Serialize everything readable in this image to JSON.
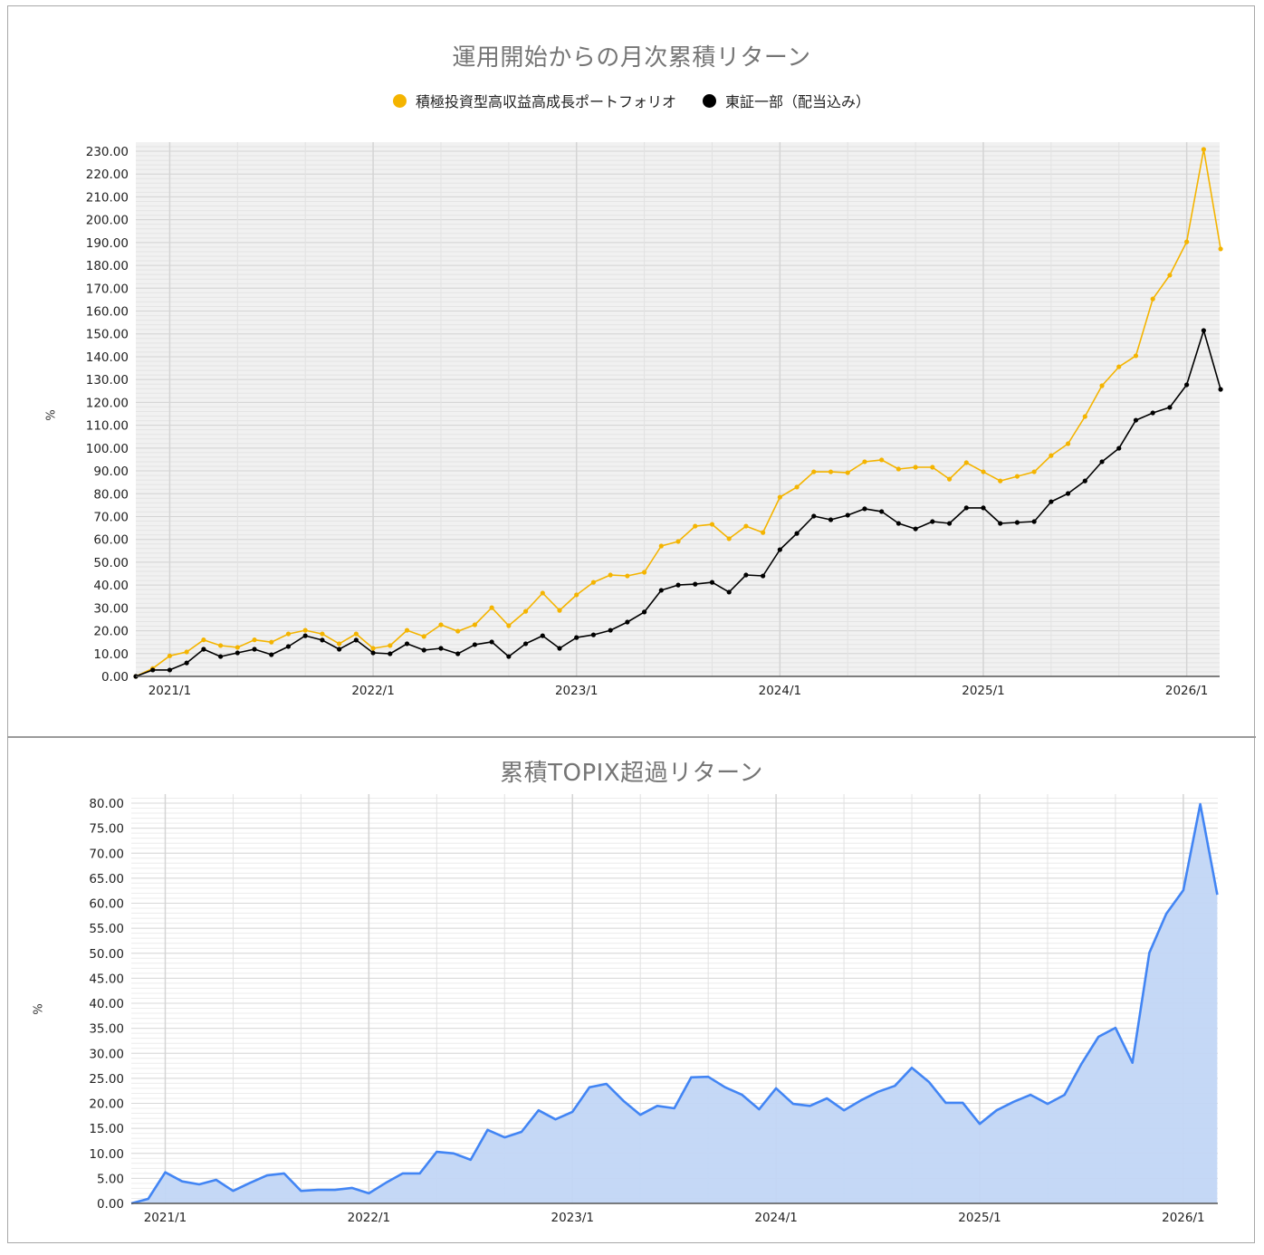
{
  "chart_data": [
    {
      "type": "line",
      "title": "運用開始からの月次累積リターン",
      "xlabel": "",
      "ylabel": "%",
      "ylim": [
        0,
        230
      ],
      "y_ticks": [
        "0.00",
        "10.00",
        "20.00",
        "30.00",
        "40.00",
        "50.00",
        "60.00",
        "70.00",
        "80.00",
        "90.00",
        "100.00",
        "110.00",
        "120.00",
        "130.00",
        "140.00",
        "150.00",
        "160.00",
        "170.00",
        "180.00",
        "190.00",
        "200.00",
        "210.00",
        "220.00",
        "230.00"
      ],
      "x_tick_labels": [
        "2021/1",
        "2022/1",
        "2023/1",
        "2024/1",
        "2025/1",
        "2026/1"
      ],
      "x_start": "2020/11",
      "x_end": "2026/3",
      "grid": true,
      "legend_position": "top",
      "series": [
        {
          "name": "積極投資型高収益高成長ポートフォリオ",
          "color": "#f4b400",
          "values": [
            0,
            3.5,
            9,
            10.7,
            16,
            13.5,
            12.7,
            16,
            15,
            18.6,
            20.2,
            18.6,
            14.3,
            18.6,
            12.3,
            13.5,
            20.2,
            17.5,
            22.6,
            19.8,
            22.6,
            30.1,
            22.2,
            28.5,
            36.5,
            28.9,
            35.7,
            41.2,
            44.4,
            44,
            45.6,
            57.1,
            59.1,
            65.8,
            66.6,
            60.3,
            65.8,
            63,
            78.5,
            82.9,
            89.6,
            89.6,
            89.2,
            94,
            94.8,
            90.8,
            91.6,
            91.6,
            86.4,
            93.6,
            89.6,
            85.6,
            87.6,
            89.6,
            96.7,
            101.9,
            113.8,
            127.3,
            135.6,
            140.4,
            165.3,
            175.7,
            190.3,
            230.8,
            187.2
          ]
        },
        {
          "name": "東証一部（配当込み）",
          "color": "#000000",
          "values": [
            0,
            2.8,
            2.8,
            5.9,
            11.9,
            8.7,
            10.3,
            11.9,
            9.5,
            13.1,
            17.8,
            15.9,
            11.9,
            15.9,
            10.3,
            9.9,
            14.3,
            11.5,
            12.3,
            9.9,
            13.9,
            15.1,
            8.7,
            14.3,
            17.8,
            12.3,
            17,
            18.2,
            20.2,
            23.8,
            28.2,
            37.7,
            40,
            40.4,
            41.2,
            36.9,
            44.4,
            44,
            55.5,
            62.6,
            70.2,
            68.6,
            70.6,
            73.4,
            72.2,
            67,
            64.6,
            67.8,
            67,
            73.8,
            73.8,
            67,
            67.4,
            67.8,
            76.5,
            80.1,
            85.6,
            94,
            99.9,
            112.2,
            115.4,
            117.8,
            127.7,
            151.5,
            125.7
          ]
        }
      ]
    },
    {
      "type": "area",
      "title": "累積TOPIX超過リターン",
      "xlabel": "",
      "ylabel": "%",
      "ylim": [
        0,
        80
      ],
      "y_ticks": [
        "0.00",
        "5.00",
        "10.00",
        "15.00",
        "20.00",
        "25.00",
        "30.00",
        "35.00",
        "40.00",
        "45.00",
        "50.00",
        "55.00",
        "60.00",
        "65.00",
        "70.00",
        "75.00",
        "80.00"
      ],
      "x_tick_labels": [
        "2021/1",
        "2022/1",
        "2023/1",
        "2024/1",
        "2025/1",
        "2026/1"
      ],
      "x_start": "2020/11",
      "x_end": "2026/3",
      "grid": true,
      "legend_position": "none",
      "series": [
        {
          "name": "累積TOPIX超過リターン",
          "color": "#4285f4",
          "fill": "#c2d6f5",
          "values": [
            0,
            0.9,
            6.2,
            4.4,
            3.8,
            4.7,
            2.5,
            4.1,
            5.6,
            6,
            2.5,
            2.7,
            2.7,
            3.1,
            2,
            4.1,
            6,
            6,
            10.3,
            10,
            8.7,
            14.7,
            13.2,
            14.3,
            18.6,
            16.8,
            18.3,
            23.2,
            23.9,
            20.5,
            17.7,
            19.5,
            19,
            25.2,
            25.3,
            23.2,
            21.7,
            18.8,
            23,
            19.9,
            19.5,
            21,
            18.6,
            20.6,
            22.3,
            23.5,
            27.1,
            24.3,
            20.1,
            20.1,
            15.9,
            18.6,
            20.3,
            21.7,
            19.9,
            21.7,
            27.9,
            33.3,
            35.1,
            28.1,
            50.1,
            57.9,
            62.6,
            79.8,
            61.7
          ]
        }
      ]
    }
  ],
  "top": {
    "title": "運用開始からの月次累積リターン",
    "legend": [
      {
        "label": "積極投資型高収益高成長ポートフォリオ",
        "color": "#f4b400"
      },
      {
        "label": "東証一部（配当込み）",
        "color": "#000000"
      }
    ],
    "ylabel": "%"
  },
  "bottom": {
    "title": "累積TOPIX超過リターン",
    "ylabel": "%"
  }
}
